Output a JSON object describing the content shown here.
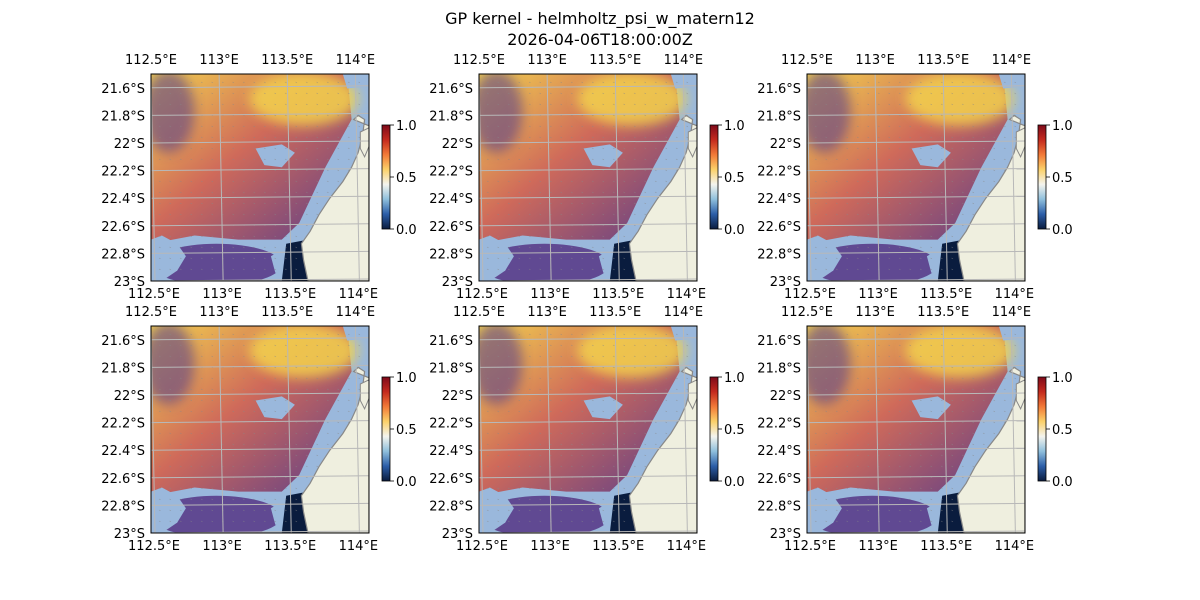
{
  "figure": {
    "title_line1": "GP kernel - helmholtz_psi_w_matern12",
    "title_line2": "2026-04-06T18:00:00Z"
  },
  "colors": {
    "ocean": "#9ab8dc",
    "land": "#efefdf",
    "coast": "#888888",
    "grid": "#b8b8b8",
    "colormap": [
      "#0a1c3e",
      "#2c5ea8",
      "#8fbfdc",
      "#f4f4ee",
      "#fbd16a",
      "#f27a38",
      "#c42a1e",
      "#7e0a1a"
    ],
    "field_low": "#5a3d8a",
    "field_mid": "#cf6a5a",
    "field_high": "#f3d24e"
  },
  "maps": {
    "lon_ticks": [
      "112.5°E",
      "113°E",
      "113.5°E",
      "114°E"
    ],
    "lat_ticks": [
      "21.6°S",
      "21.8°S",
      "22°S",
      "22.2°S",
      "22.4°S",
      "22.6°S",
      "22.8°S",
      "23°S"
    ],
    "lon_range": [
      112.5,
      114.1
    ],
    "lat_range": [
      -23.0,
      -21.5
    ],
    "colorbar_ticks": [
      "0.0",
      "0.5",
      "1.0"
    ],
    "colorbar_range": [
      0.0,
      1.0
    ],
    "panels_count": 6
  },
  "icons": {
    "vector_arrows": "quiver-arrows-icon"
  }
}
